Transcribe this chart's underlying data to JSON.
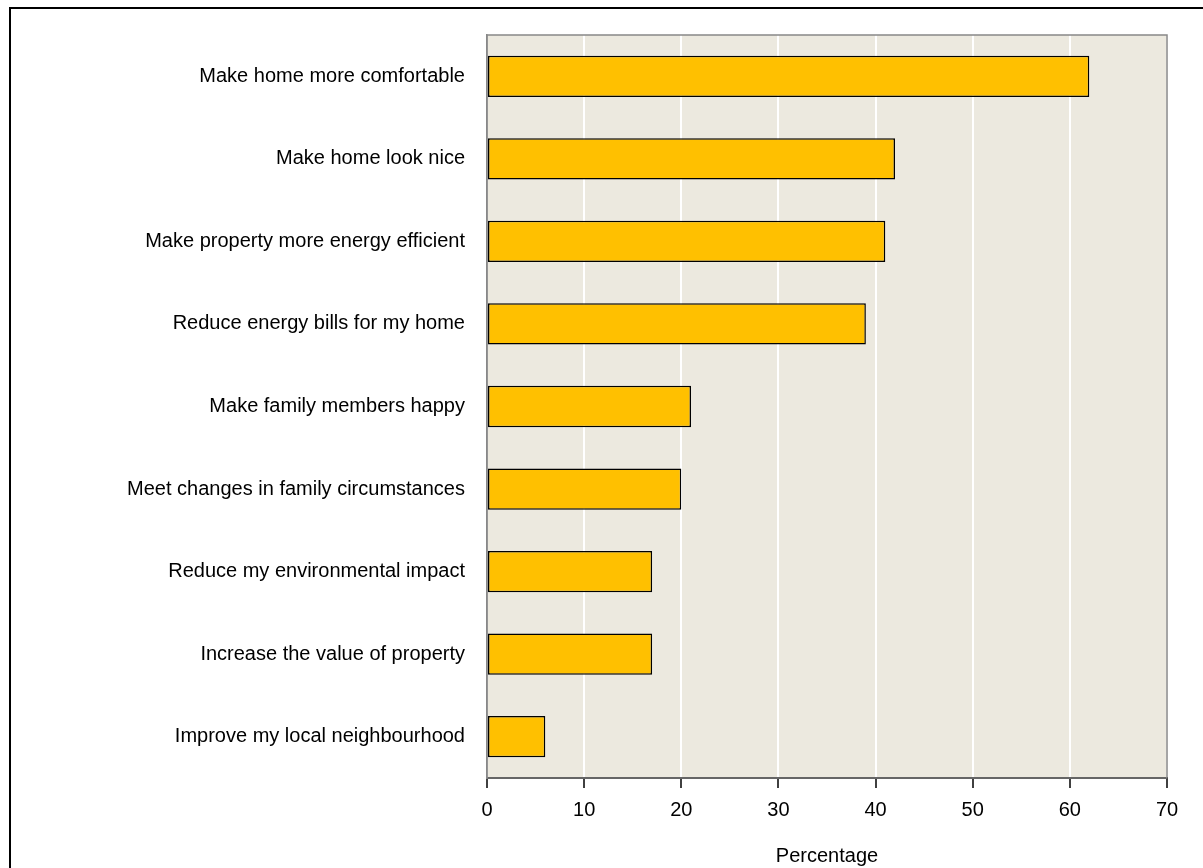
{
  "chart_data": {
    "type": "bar",
    "orientation": "horizontal",
    "categories": [
      "Make home more comfortable",
      "Make home look nice",
      "Make property more energy efficient",
      "Reduce energy bills for my home",
      "Make family members happy",
      "Meet changes in family circumstances",
      "Reduce my environmental impact",
      "Increase the value of property",
      "Improve my local neighbourhood"
    ],
    "values": [
      62,
      42,
      41,
      39,
      21,
      20,
      17,
      17,
      6
    ],
    "color": "#ffc000",
    "xlabel": "Percentage",
    "xlim": [
      0,
      70
    ],
    "xticks": [
      0,
      10,
      20,
      30,
      40,
      50,
      60,
      70
    ],
    "grid": "x"
  }
}
